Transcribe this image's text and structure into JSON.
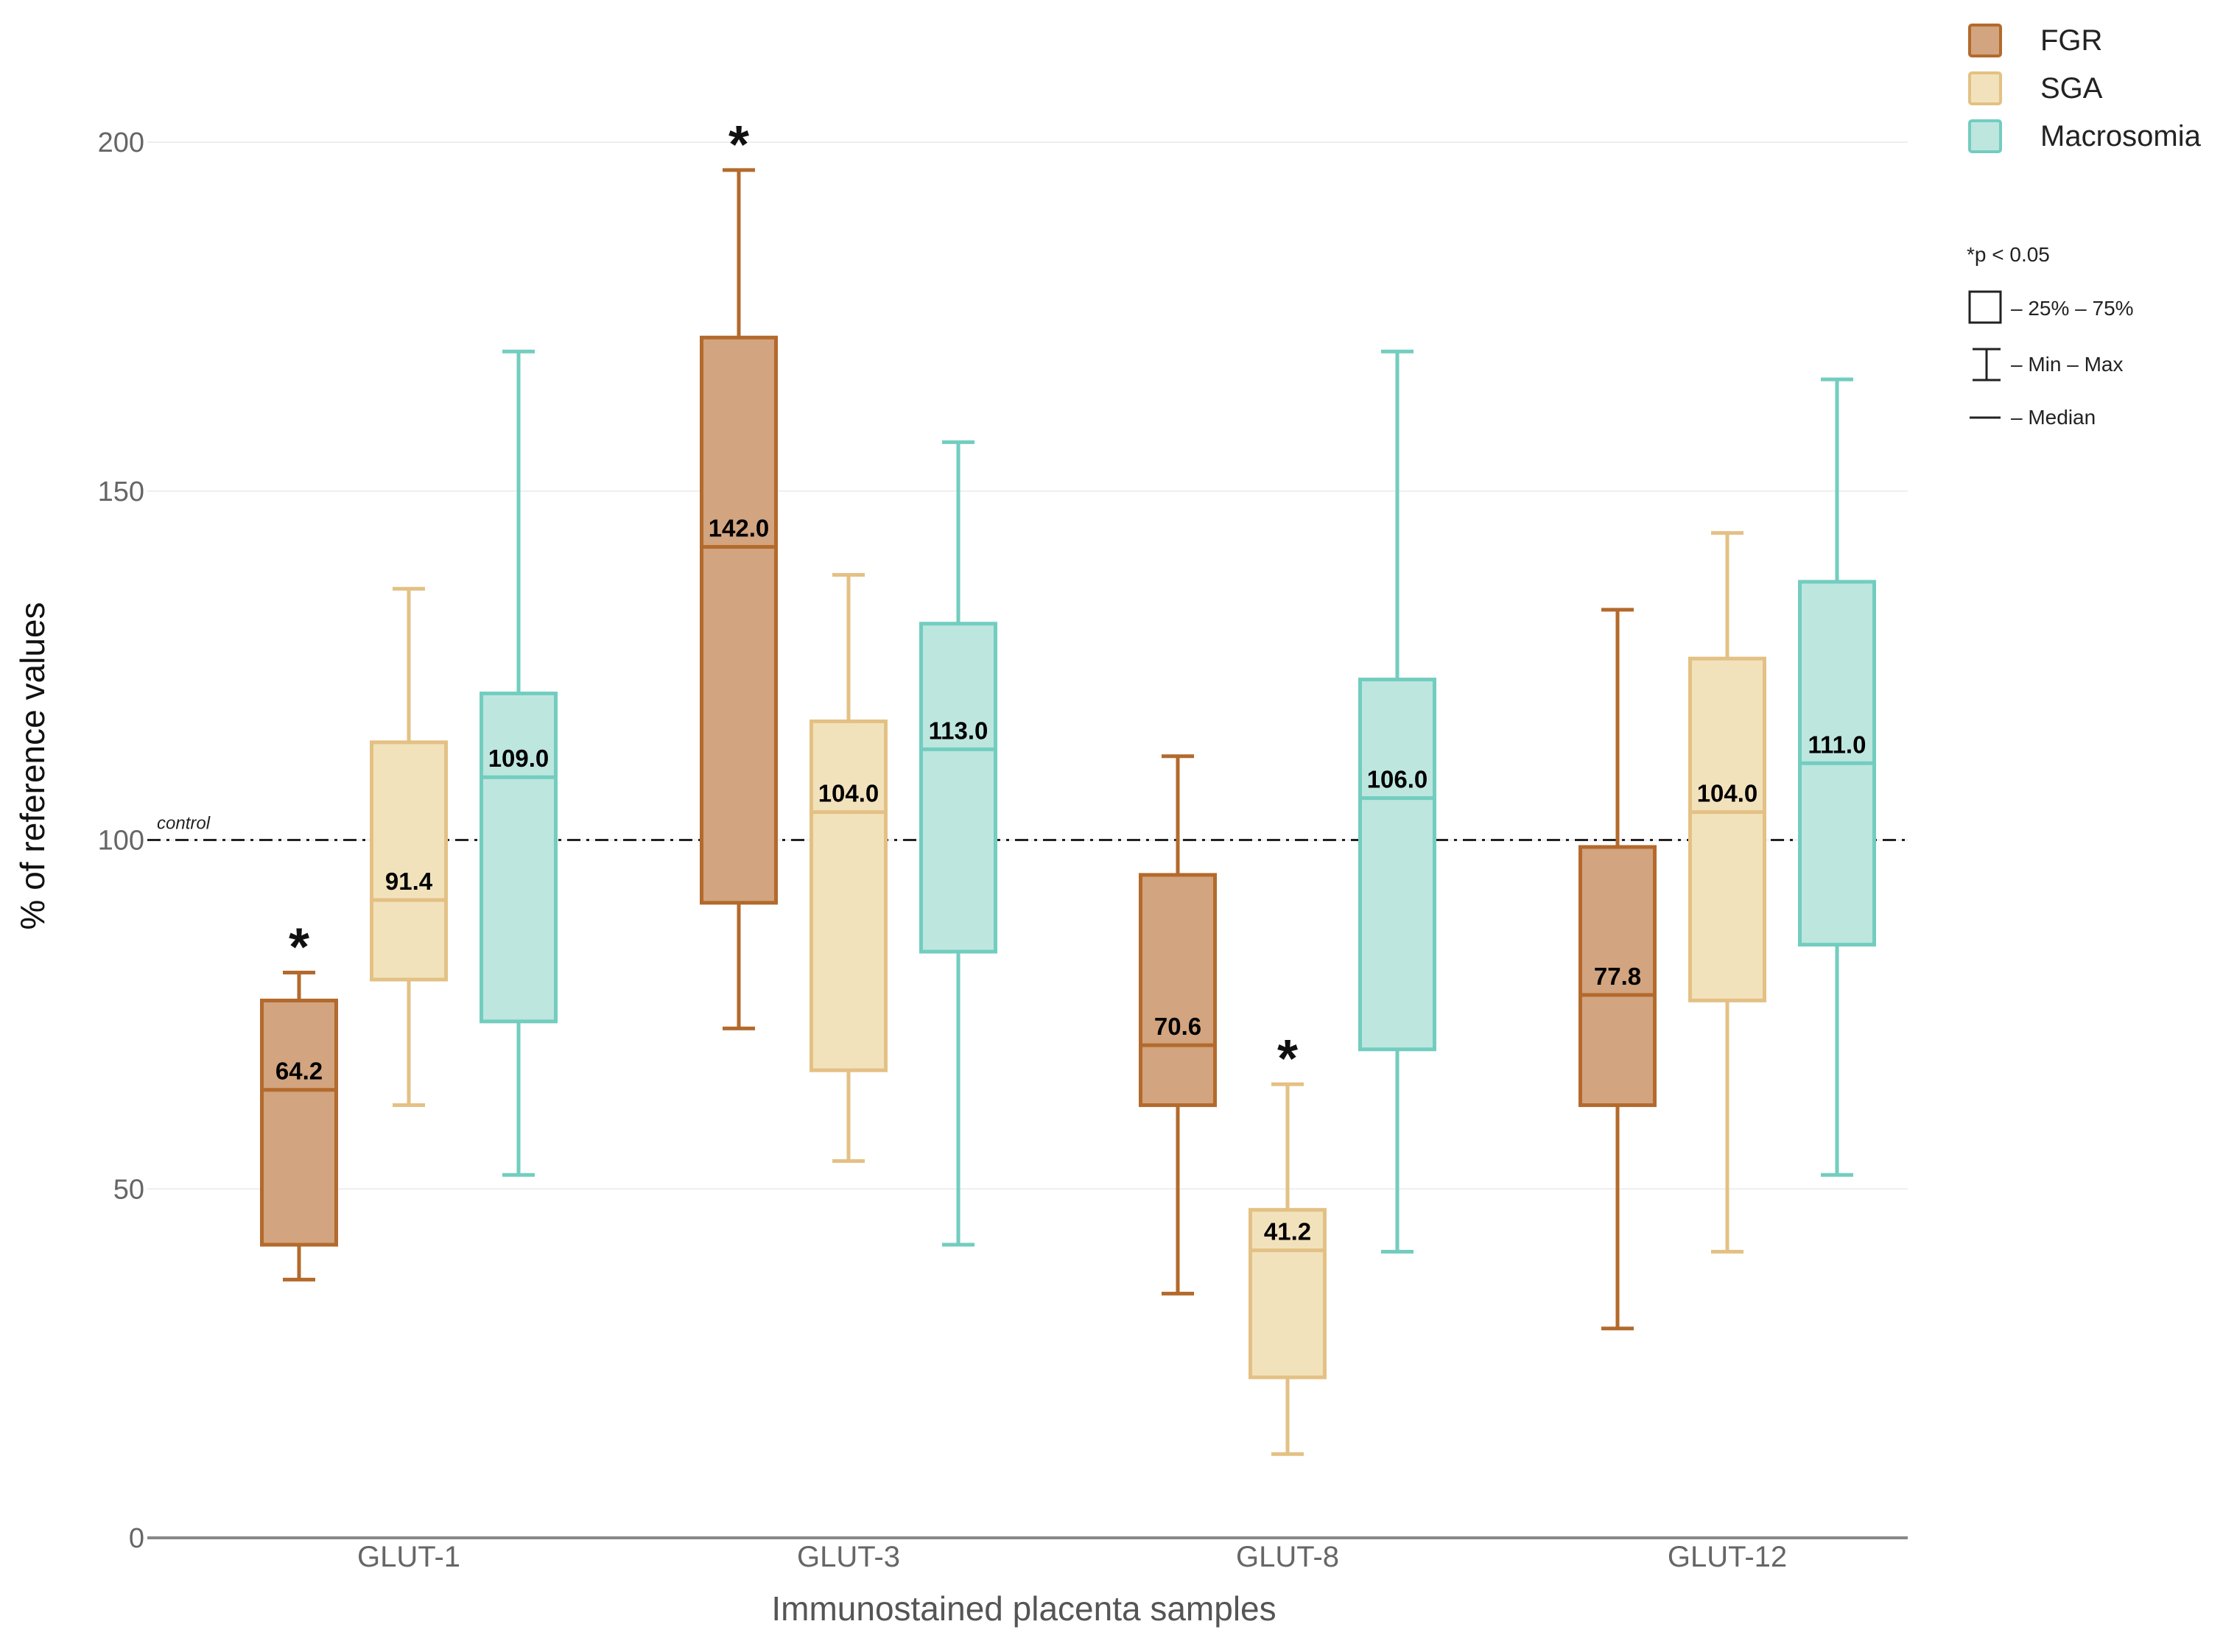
{
  "chart_data": {
    "type": "box",
    "xlabel": "Immunostained placenta samples",
    "ylabel": "% of reference values",
    "ylim": [
      0,
      200
    ],
    "yticks": [
      0,
      50,
      100,
      150,
      200
    ],
    "categories": [
      "GLUT-1",
      "GLUT-3",
      "GLUT-8",
      "GLUT-12"
    ],
    "reference_line": {
      "value": 100,
      "label": "control",
      "style": "dash-dot"
    },
    "series": [
      {
        "name": "FGR",
        "color": "#b36a2c",
        "fill": "#d2a47f",
        "boxes": [
          {
            "category": "GLUT-1",
            "min": 37,
            "q1": 42,
            "median": 64.2,
            "q3": 77,
            "max": 81,
            "median_label": "64.2",
            "significant": true
          },
          {
            "category": "GLUT-3",
            "min": 73,
            "q1": 91,
            "median": 142.0,
            "q3": 172,
            "max": 196,
            "median_label": "142.0",
            "significant": true
          },
          {
            "category": "GLUT-8",
            "min": 35,
            "q1": 62,
            "median": 70.6,
            "q3": 95,
            "max": 112,
            "median_label": "70.6",
            "significant": false
          },
          {
            "category": "GLUT-12",
            "min": 30,
            "q1": 62,
            "median": 77.8,
            "q3": 99,
            "max": 133,
            "median_label": "77.8",
            "significant": false
          }
        ]
      },
      {
        "name": "SGA",
        "color": "#e3c184",
        "fill": "#f2e2bc",
        "boxes": [
          {
            "category": "GLUT-1",
            "min": 62,
            "q1": 80,
            "median": 91.4,
            "q3": 114,
            "max": 136,
            "median_label": "91.4",
            "significant": false
          },
          {
            "category": "GLUT-3",
            "min": 54,
            "q1": 67,
            "median": 104.0,
            "q3": 117,
            "max": 138,
            "median_label": "104.0",
            "significant": false
          },
          {
            "category": "GLUT-8",
            "min": 12,
            "q1": 23,
            "median": 41.2,
            "q3": 47,
            "max": 65,
            "median_label": "41.2",
            "significant": true
          },
          {
            "category": "GLUT-12",
            "min": 41,
            "q1": 77,
            "median": 104.0,
            "q3": 126,
            "max": 144,
            "median_label": "104.0",
            "significant": false
          }
        ]
      },
      {
        "name": "Macrosomia",
        "color": "#72cdbf",
        "fill": "#bde6df",
        "boxes": [
          {
            "category": "GLUT-1",
            "min": 52,
            "q1": 74,
            "median": 109.0,
            "q3": 121,
            "max": 170,
            "median_label": "109.0",
            "significant": false
          },
          {
            "category": "GLUT-3",
            "min": 42,
            "q1": 84,
            "median": 113.0,
            "q3": 131,
            "max": 157,
            "median_label": "113.0",
            "significant": false
          },
          {
            "category": "GLUT-8",
            "min": 41,
            "q1": 70,
            "median": 106.0,
            "q3": 123,
            "max": 170,
            "median_label": "106.0",
            "significant": false
          },
          {
            "category": "GLUT-12",
            "min": 52,
            "q1": 85,
            "median": 111.0,
            "q3": 137,
            "max": 166,
            "median_label": "111.0",
            "significant": false
          }
        ]
      }
    ],
    "significance_marker": "*",
    "legend": [
      "FGR",
      "SGA",
      "Macrosomia"
    ],
    "key": {
      "significance": "*p < 0.05",
      "box": "– 25% – 75%",
      "whisker": "– Min – Max",
      "median": "– Median"
    }
  }
}
